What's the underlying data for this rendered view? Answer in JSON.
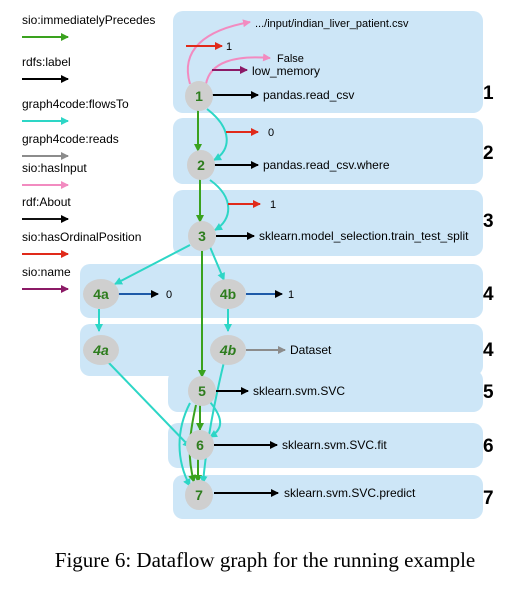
{
  "colors": {
    "panel": "#cde6f7",
    "node": "#cfcfcf",
    "node_text": "#2e7d1e",
    "immediatelyPrecedes": "#3aa21e",
    "label": "#000000",
    "flowsTo": "#2dd6c6",
    "reads": "#8c8c8c",
    "hasInput": "#f28bc0",
    "about": "#111111",
    "hasOrdinalPosition": "#e02a1a",
    "name": "#8b1a66"
  },
  "legend": [
    {
      "label": "sio:immediatelyPrecedes",
      "color_key": "immediatelyPrecedes"
    },
    {
      "label": "rdfs:label",
      "color_key": "label"
    },
    {
      "label": "graph4code:flowsTo",
      "color_key": "flowsTo"
    },
    {
      "label": "graph4code:reads",
      "color_key": "reads"
    },
    {
      "label": "sio:hasInput",
      "color_key": "hasInput"
    },
    {
      "label": "rdf:About",
      "color_key": "about"
    },
    {
      "label": "sio:hasOrdinalPosition",
      "color_key": "hasOrdinalPosition"
    },
    {
      "label": "sio:name",
      "color_key": "name"
    }
  ],
  "rows": [
    {
      "label": "1"
    },
    {
      "label": "2"
    },
    {
      "label": "3"
    },
    {
      "label": "4"
    },
    {
      "label": "4"
    },
    {
      "label": "5"
    },
    {
      "label": "6"
    },
    {
      "label": "7"
    }
  ],
  "nodes": [
    {
      "label": "1"
    },
    {
      "label": "2"
    },
    {
      "label": "3"
    },
    {
      "label": "4a"
    },
    {
      "label": "4b"
    },
    {
      "label": "4a"
    },
    {
      "label": "4b"
    },
    {
      "label": "5"
    },
    {
      "label": "6"
    },
    {
      "label": "7"
    }
  ],
  "texts": {
    "csv_path": ".../input/indian_liver_patient.csv",
    "pos1": "1",
    "false_val": "False",
    "low_memory": "low_memory",
    "read_csv": "pandas.read_csv",
    "pos0_row2": "0",
    "read_csv_where": "pandas.read_csv.where",
    "pos1_row3": "1",
    "train_test_split": "sklearn.model_selection.train_test_split",
    "pos0_4a": "0",
    "pos1_4b": "1",
    "dataset": "Dataset",
    "svc": "sklearn.svm.SVC",
    "svc_fit": "sklearn.svm.SVC.fit",
    "svc_predict": "sklearn.svm.SVC.predict"
  },
  "caption": "Figure 6: Dataflow graph for the running example"
}
